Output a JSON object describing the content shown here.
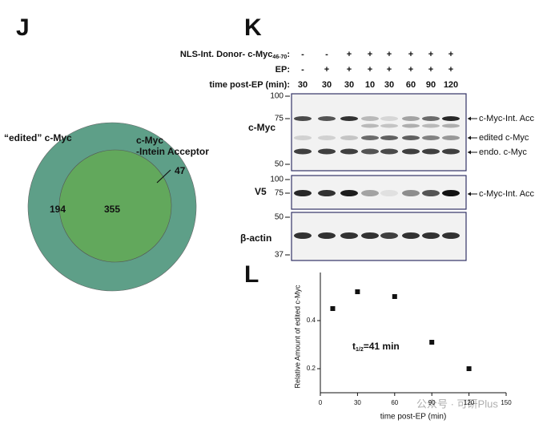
{
  "panels": {
    "J": "J",
    "K": "K",
    "L": "L"
  },
  "venn": {
    "left_label": "“edited” c-Myc",
    "right_label": [
      "c-Myc",
      "-Intein Acceptor"
    ],
    "left_only": 194,
    "overlap": 355,
    "right_only": 47
  },
  "blot": {
    "rows": [
      {
        "label": "NLS-Int. Donor- c-Myc",
        "subscript": "46-70",
        "suffix": ":",
        "values": [
          "-",
          "-",
          "+",
          "+",
          "+",
          "+",
          "+",
          "+"
        ]
      },
      {
        "label": "EP:",
        "values": [
          "-",
          "+",
          "+",
          "+",
          "+",
          "+",
          "+",
          "+"
        ]
      },
      {
        "label": "time post-EP (min):",
        "values": [
          30,
          30,
          30,
          10,
          30,
          60,
          90,
          120
        ]
      }
    ],
    "panels": [
      {
        "name": "c-Myc",
        "markers": [
          100,
          75,
          50
        ],
        "bands": [
          "c-Myc-Int. Acc",
          "edited c-Myc",
          "endo. c-Myc"
        ]
      },
      {
        "name": "V5",
        "markers": [
          100,
          75
        ],
        "bands": [
          "c-Myc-Int. Acc"
        ]
      },
      {
        "name": "β-actin",
        "markers": [
          50,
          37
        ]
      }
    ]
  },
  "chart_data": {
    "type": "scatter",
    "annotation": {
      "text": "t",
      "subscript": "1/2",
      "rest": "=41 min"
    },
    "x_label": "time post-EP (min)",
    "y_label": "Relative Amount of edited c-Myc",
    "x": [
      10,
      30,
      60,
      90,
      120
    ],
    "values": [
      0.45,
      0.52,
      0.5,
      0.31,
      0.2
    ],
    "color": "#111111",
    "xlim": [
      0,
      150
    ],
    "ylim": [
      0.1,
      0.6
    ],
    "xticks": [
      0,
      30,
      60,
      90,
      120,
      150
    ],
    "yticks": [
      0.2,
      0.4
    ]
  },
  "watermark": "公众号 · 可研Plus"
}
